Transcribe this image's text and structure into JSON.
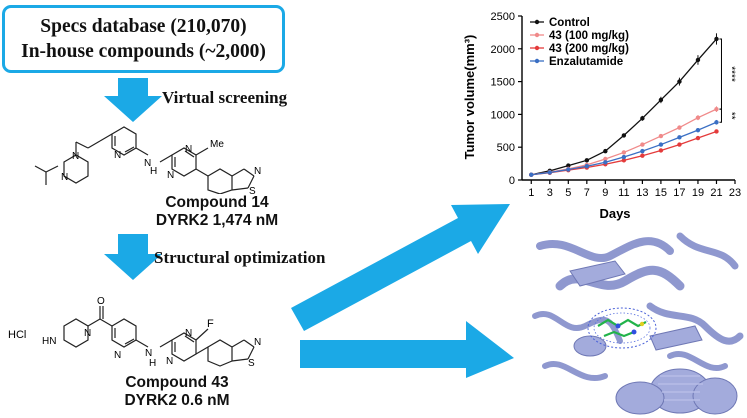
{
  "source_box": {
    "line1": "Specs database (210,070)",
    "line2": "In-house compounds (~2,000)"
  },
  "steps": {
    "step1": "Virtual screening",
    "step2": "Structural optimization"
  },
  "compound14": {
    "name": "Compound 14",
    "activity": "DYRK2 1,474 nM",
    "atoms": {
      "n_amine": "N",
      "h": "H",
      "n_link": "N",
      "methyl": "Me"
    }
  },
  "compound43": {
    "name": "Compound 43",
    "activity": "DYRK2 0.6 nM",
    "atoms": {
      "salt": "HCl",
      "nh": "HN",
      "n_pip": "N",
      "o": "O",
      "f": "F",
      "n_link": "N",
      "h": "H"
    }
  },
  "ring_atoms": {
    "n": "N",
    "s": "S"
  },
  "colors": {
    "accent_blue": "#1ba9e6",
    "control": "#111111",
    "dose100": "#f08a8a",
    "dose200": "#e43b3b",
    "enzalutamide": "#3a6fc4",
    "protein": "#9aa3d6"
  },
  "chart_data": {
    "type": "line",
    "xlabel": "Days",
    "ylabel": "Tumor volume(mm³)",
    "xlim": [
      0,
      23
    ],
    "ylim": [
      0,
      2500
    ],
    "xticks": [
      1,
      3,
      5,
      7,
      9,
      11,
      13,
      15,
      17,
      19,
      21,
      23
    ],
    "yticks": [
      0,
      500,
      1000,
      1500,
      2000,
      2500
    ],
    "x": [
      1,
      3,
      5,
      7,
      9,
      11,
      13,
      15,
      17,
      19,
      21
    ],
    "legend_position": "top-left",
    "series": [
      {
        "name": "Control",
        "color": "#111111",
        "marker": "circle",
        "values": [
          80,
          140,
          220,
          300,
          440,
          680,
          940,
          1220,
          1500,
          1830,
          2150
        ]
      },
      {
        "name": "43 (100 mg/kg)",
        "color": "#f08a8a",
        "marker": "circle",
        "values": [
          80,
          120,
          170,
          230,
          320,
          420,
          540,
          670,
          800,
          950,
          1080
        ]
      },
      {
        "name": "43 (200 mg/kg)",
        "color": "#e43b3b",
        "marker": "circle",
        "values": [
          80,
          110,
          150,
          190,
          240,
          300,
          370,
          450,
          540,
          640,
          740
        ]
      },
      {
        "name": "Enzalutamide",
        "color": "#3a6fc4",
        "marker": "circle",
        "values": [
          80,
          115,
          160,
          210,
          270,
          350,
          440,
          540,
          650,
          760,
          880
        ]
      }
    ],
    "annotations": [
      {
        "text": "****",
        "between": [
          "Control",
          "43 (100 mg/kg)"
        ]
      },
      {
        "text": "**",
        "between": [
          "43 (100 mg/kg)",
          "Enzalutamide"
        ]
      }
    ]
  }
}
